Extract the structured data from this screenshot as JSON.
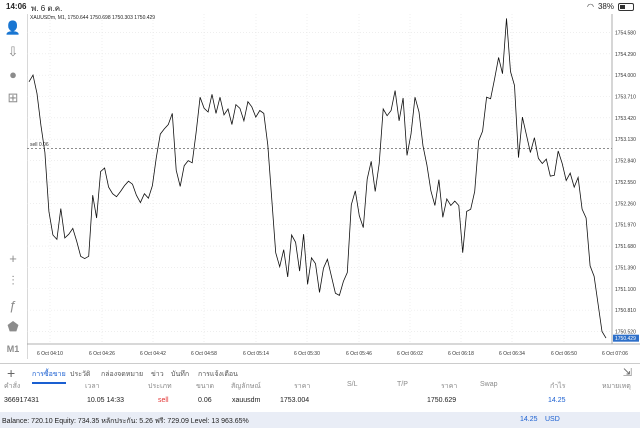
{
  "status": {
    "time": "14:06",
    "date": "พ. 6 ต.ค.",
    "battery": "38%"
  },
  "chart": {
    "header": "XAUUSDm, M1, 1750.644 1750.698 1750.303 1750.429",
    "sell_line_label": "sell 0.06",
    "current_price": "1750.429",
    "colors": {
      "line": "#111111",
      "grid": "#d0d0d0",
      "sell_line": "#8c8c8c",
      "price_tag": "#2d6fc9"
    }
  },
  "chart_data": {
    "type": "line",
    "title": "XAUUSDm, M1, 1750.644 1750.698 1750.303 1750.429",
    "xlabel": "",
    "ylabel": "",
    "x_ticks": [
      "6 Oct 04:10",
      "6 Oct 04:26",
      "6 Oct 04:42",
      "6 Oct 04:58",
      "6 Oct 05:14",
      "6 Oct 05:30",
      "6 Oct 05:46",
      "6 Oct 06:02",
      "6 Oct 06:18",
      "6 Oct 06:34",
      "6 Oct 06:50",
      "6 Oct 07:06"
    ],
    "y_ticks": [
      1754.58,
      1754.29,
      1754.0,
      1753.71,
      1753.42,
      1753.13,
      1752.84,
      1752.55,
      1752.26,
      1751.97,
      1751.68,
      1751.39,
      1751.1,
      1750.81,
      1750.52
    ],
    "ylim": [
      1750.35,
      1754.83
    ],
    "grid": true,
    "series": [
      {
        "values": [
          1753.91,
          1754.0,
          1753.75,
          1753.32,
          1752.95,
          1752.15,
          1751.83,
          1751.77,
          1752.19,
          1751.79,
          1751.84,
          1751.92,
          1751.74,
          1751.54,
          1751.51,
          1751.54,
          1752.37,
          1752.06,
          1752.69,
          1752.74,
          1752.48,
          1752.39,
          1752.35,
          1752.42,
          1752.5,
          1752.56,
          1752.52,
          1752.37,
          1752.27,
          1752.39,
          1752.33,
          1752.5,
          1752.88,
          1753.2,
          1753.27,
          1753.33,
          1753.48,
          1752.71,
          1752.49,
          1752.77,
          1752.84,
          1752.81,
          1753.22,
          1753.7,
          1753.55,
          1753.5,
          1753.74,
          1753.48,
          1753.7,
          1753.46,
          1753.54,
          1753.33,
          1753.6,
          1753.55,
          1753.38,
          1753.64,
          1753.57,
          1753.43,
          1753.52,
          1753.48,
          1753.05,
          1752.33,
          1751.59,
          1751.4,
          1751.63,
          1751.26,
          1751.83,
          1751.73,
          1751.34,
          1751.84,
          1751.16,
          1751.52,
          1751.44,
          1751.05,
          1751.38,
          1751.5,
          1751.27,
          1751.04,
          1751.01,
          1751.2,
          1751.32,
          1752.24,
          1752.43,
          1752.09,
          1751.93,
          1752.59,
          1752.83,
          1752.42,
          1752.8,
          1753.54,
          1753.45,
          1753.52,
          1753.79,
          1753.38,
          1753.69,
          1752.91,
          1753.2,
          1753.7,
          1753.5,
          1753.04,
          1752.78,
          1752.43,
          1752.23,
          1752.58,
          1752.07,
          1752.32,
          1752.23,
          1752.29,
          1752.23,
          1751.59,
          1752.15,
          1752.18,
          1752.42,
          1753.11,
          1753.24,
          1753.7,
          1753.68,
          1753.95,
          1754.24,
          1754.02,
          1754.77,
          1754.05,
          1753.86,
          1752.88,
          1753.43,
          1753.19,
          1752.95,
          1753.15,
          1752.87,
          1752.8,
          1752.86,
          1752.63,
          1752.64,
          1752.97,
          1752.8,
          1752.57,
          1752.67,
          1752.48,
          1752.61,
          1752.18,
          1752.06,
          1751.41,
          1751.27,
          1750.9,
          1750.52,
          1750.43
        ]
      }
    ]
  },
  "tabs": [
    "การซื้อขาย",
    "ประวัติ",
    "กล่องจดหมาย",
    "ข่าว",
    "บันทึก",
    "การแจ้งเตือน"
  ],
  "table": {
    "headers": [
      "คำสั่ง",
      "เวลา",
      "ประเภท",
      "ขนาด",
      "สัญลักษณ์",
      "ราคา",
      "S/L",
      "T/P",
      "ราคา",
      "Swap",
      "กำไร",
      "หมายเหตุ"
    ],
    "row": {
      "order": "366917431",
      "time": "10.05 14:33",
      "type": "sell",
      "size": "0.06",
      "symbol": "xauusdm",
      "price": "1753.004",
      "sl": "",
      "tp": "",
      "current": "1750.629",
      "swap": "",
      "profit": "14.25",
      "comment": ""
    }
  },
  "balance": {
    "text": "Balance: 720.10 Equity: 734.35 หลักประกัน: 5.26 ฟรี: 729.09 Level: 13 963.65%",
    "profit": "14.25",
    "currency": "USD"
  }
}
